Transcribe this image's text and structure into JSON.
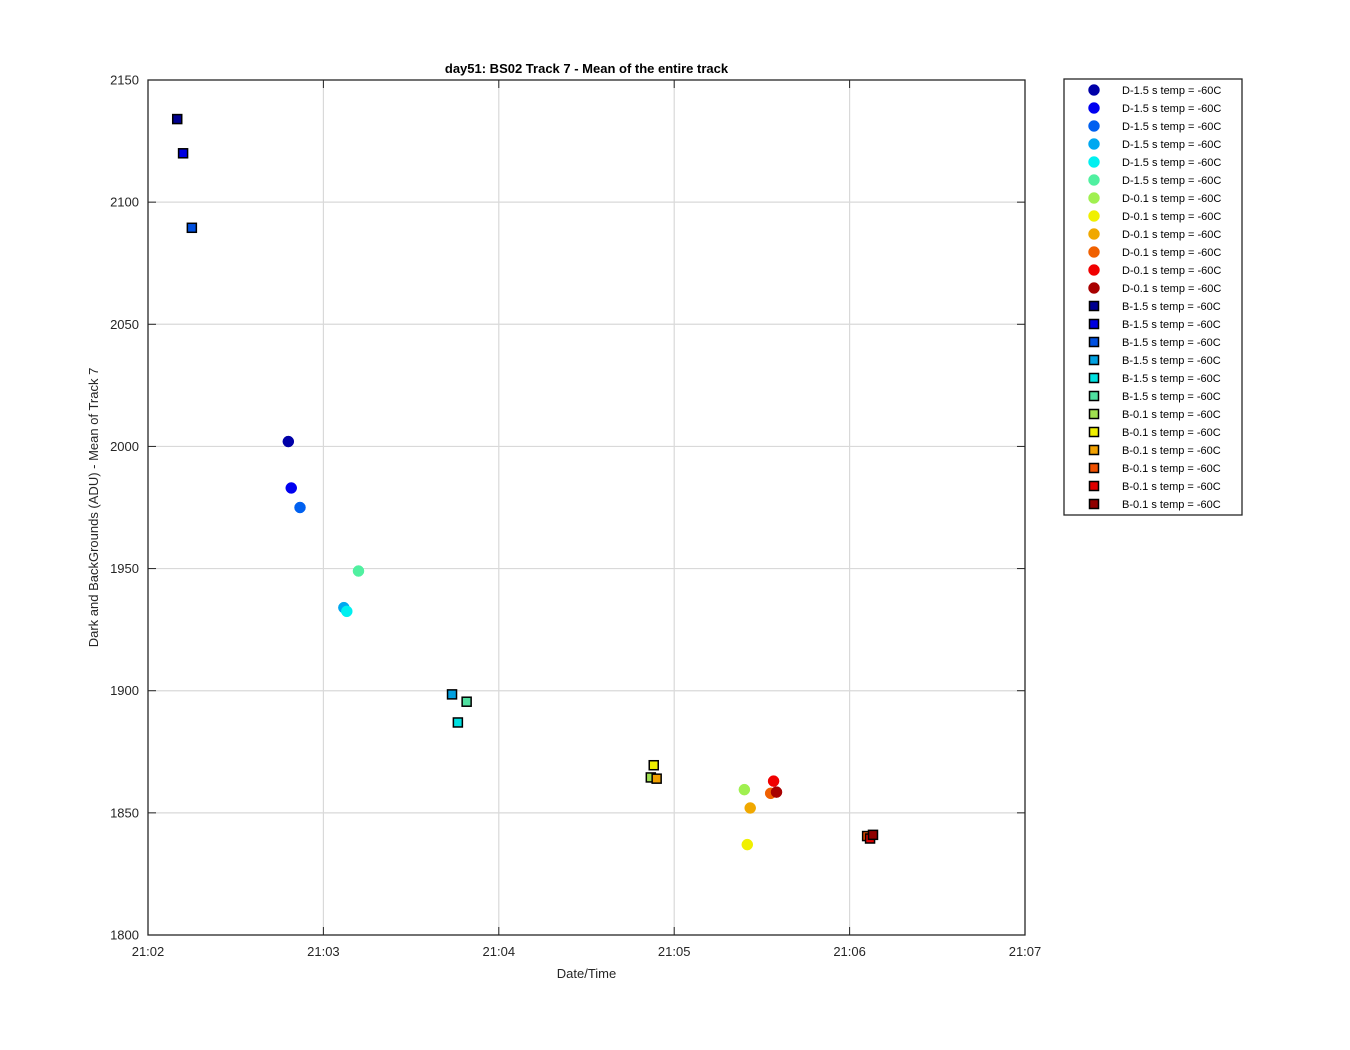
{
  "chart_data": {
    "type": "scatter",
    "title": "day51: BS02  Track 7 - Mean of the entire track",
    "xlabel": "Date/Time",
    "ylabel": "Dark and BackGrounds (ADU) - Mean of Track 7",
    "x_unit": "time (HH:MM:SS)",
    "xlim": [
      "21:02:00",
      "21:07:00"
    ],
    "ylim": [
      1800,
      2150
    ],
    "xticks": [
      "21:02",
      "21:03",
      "21:04",
      "21:05",
      "21:06",
      "21:07"
    ],
    "yticks": [
      1800,
      1850,
      1900,
      1950,
      2000,
      2050,
      2100,
      2150
    ],
    "grid": true,
    "legend_position": "outside-right",
    "series": [
      {
        "name": "D-1.5 s temp = -60C",
        "marker": "circle",
        "color": "#0000a8",
        "points": [
          {
            "x": "21:02:48",
            "y": 2002
          }
        ]
      },
      {
        "name": "D-1.5 s temp = -60C",
        "marker": "circle",
        "color": "#0000f0",
        "points": [
          {
            "x": "21:02:49",
            "y": 1983
          }
        ]
      },
      {
        "name": "D-1.5 s temp = -60C",
        "marker": "circle",
        "color": "#0060f0",
        "points": [
          {
            "x": "21:02:52",
            "y": 1975
          }
        ]
      },
      {
        "name": "D-1.5 s temp = -60C",
        "marker": "circle",
        "color": "#00a8f0",
        "points": [
          {
            "x": "21:03:07",
            "y": 1934
          }
        ]
      },
      {
        "name": "D-1.5 s temp = -60C",
        "marker": "circle",
        "color": "#00f0f0",
        "points": [
          {
            "x": "21:03:08",
            "y": 1932.5
          }
        ]
      },
      {
        "name": "D-1.5 s temp = -60C",
        "marker": "circle",
        "color": "#50f0a0",
        "points": [
          {
            "x": "21:03:12",
            "y": 1949
          }
        ]
      },
      {
        "name": "D-0.1 s temp = -60C",
        "marker": "circle",
        "color": "#a0f050",
        "points": [
          {
            "x": "21:05:24",
            "y": 1859.5
          }
        ]
      },
      {
        "name": "D-0.1 s temp = -60C",
        "marker": "circle",
        "color": "#f0f000",
        "points": [
          {
            "x": "21:05:25",
            "y": 1837
          }
        ]
      },
      {
        "name": "D-0.1 s temp = -60C",
        "marker": "circle",
        "color": "#f0a800",
        "points": [
          {
            "x": "21:05:26",
            "y": 1852
          }
        ]
      },
      {
        "name": "D-0.1 s temp = -60C",
        "marker": "circle",
        "color": "#f06000",
        "points": [
          {
            "x": "21:05:33",
            "y": 1858
          }
        ]
      },
      {
        "name": "D-0.1 s temp = -60C",
        "marker": "circle",
        "color": "#f00000",
        "points": [
          {
            "x": "21:05:34",
            "y": 1863
          }
        ]
      },
      {
        "name": "D-0.1 s temp = -60C",
        "marker": "circle",
        "color": "#a80000",
        "points": [
          {
            "x": "21:05:35",
            "y": 1858.5
          }
        ]
      },
      {
        "name": "B-1.5 s temp = -60C",
        "marker": "square",
        "color": "#000090",
        "points": [
          {
            "x": "21:02:10",
            "y": 2134
          }
        ]
      },
      {
        "name": "B-1.5 s temp = -60C",
        "marker": "square",
        "color": "#0000e0",
        "points": [
          {
            "x": "21:02:12",
            "y": 2120
          }
        ]
      },
      {
        "name": "B-1.5 s temp = -60C",
        "marker": "square",
        "color": "#0050e0",
        "points": [
          {
            "x": "21:02:15",
            "y": 2089.5
          }
        ]
      },
      {
        "name": "B-1.5 s temp = -60C",
        "marker": "square",
        "color": "#00a0e0",
        "points": [
          {
            "x": "21:03:44",
            "y": 1898.5
          }
        ]
      },
      {
        "name": "B-1.5 s temp = -60C",
        "marker": "square",
        "color": "#00e0e0",
        "points": [
          {
            "x": "21:03:46",
            "y": 1887
          }
        ]
      },
      {
        "name": "B-1.5 s temp = -60C",
        "marker": "square",
        "color": "#50e0a0",
        "points": [
          {
            "x": "21:03:49",
            "y": 1895.5
          }
        ]
      },
      {
        "name": "B-0.1 s temp = -60C",
        "marker": "square",
        "color": "#a0e050",
        "points": [
          {
            "x": "21:04:52",
            "y": 1864.5
          }
        ]
      },
      {
        "name": "B-0.1 s temp = -60C",
        "marker": "square",
        "color": "#f0f000",
        "points": [
          {
            "x": "21:04:53",
            "y": 1869.5
          }
        ]
      },
      {
        "name": "B-0.1 s temp = -60C",
        "marker": "square",
        "color": "#f0a000",
        "points": [
          {
            "x": "21:04:54",
            "y": 1864
          }
        ]
      },
      {
        "name": "B-0.1 s temp = -60C",
        "marker": "square",
        "color": "#f05000",
        "points": [
          {
            "x": "21:06:06",
            "y": 1840.5
          }
        ]
      },
      {
        "name": "B-0.1 s temp = -60C",
        "marker": "square",
        "color": "#e00000",
        "points": [
          {
            "x": "21:06:07",
            "y": 1839.5
          }
        ]
      },
      {
        "name": "B-0.1 s temp = -60C",
        "marker": "square",
        "color": "#900000",
        "points": [
          {
            "x": "21:06:08",
            "y": 1841
          }
        ]
      }
    ]
  }
}
